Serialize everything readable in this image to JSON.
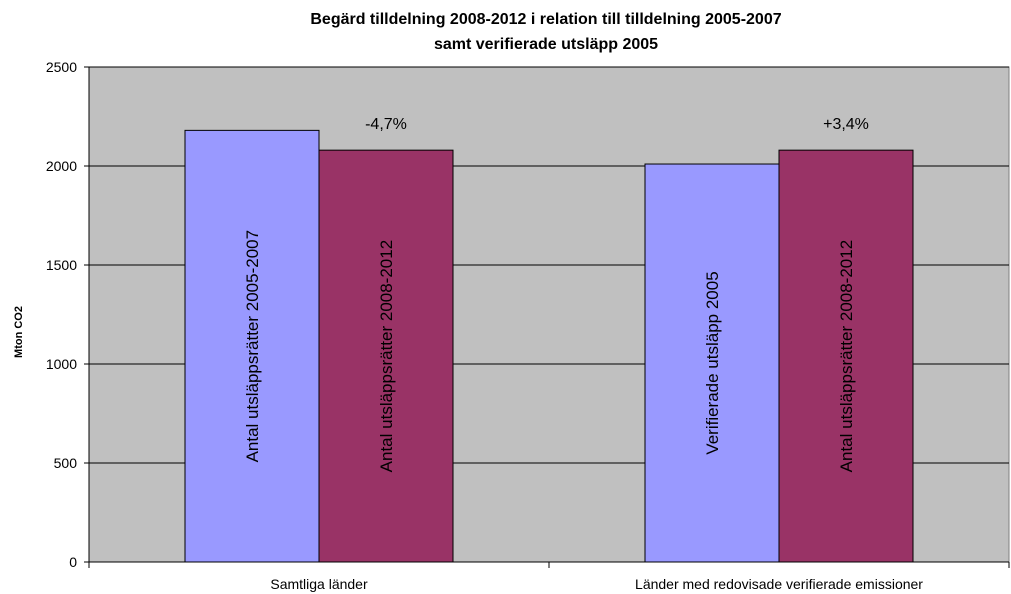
{
  "chart_data": {
    "type": "bar",
    "title": "Begärd tilldelning 2008-2012 i relation till tilldelning 2005-2007",
    "subtitle": "samt verifierade utsläpp 2005",
    "ylabel": "Mton CO2",
    "ylim": [
      0,
      2500
    ],
    "yticks": [
      "0",
      "500",
      "1000",
      "1500",
      "2000",
      "2500"
    ],
    "grid": true,
    "plot_background": "#c0c0c0",
    "groups": [
      {
        "category": "Samtliga länder",
        "annotation": "-4,7%",
        "bars": [
          {
            "label": "Antal utsläppsrätter 2005-2007",
            "value": 2180,
            "color": "#9999ff"
          },
          {
            "label": "Antal utsläppsrätter 2008-2012",
            "value": 2080,
            "color": "#993366"
          }
        ]
      },
      {
        "category": "Länder med redovisade verifierade emissioner",
        "annotation": "+3,4%",
        "bars": [
          {
            "label": "Verifierade utsläpp 2005",
            "value": 2010,
            "color": "#9999ff"
          },
          {
            "label": "Antal utsläppsrätter 2008-2012",
            "value": 2080,
            "color": "#993366"
          }
        ]
      }
    ]
  }
}
